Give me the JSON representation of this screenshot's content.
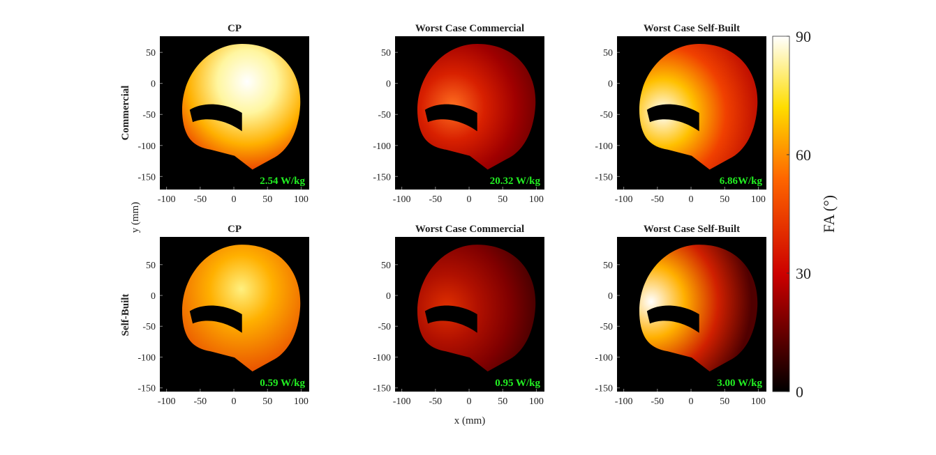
{
  "chart_data": [
    {
      "type": "heatmap",
      "title": "CP",
      "annotation": "2.54 W/kg",
      "xlim": [
        -110,
        112
      ],
      "ylim": [
        -171,
        76
      ],
      "xticks": [
        -100,
        -50,
        0,
        50,
        100
      ],
      "yticks": [
        -150,
        -100,
        -50,
        0,
        50
      ]
    },
    {
      "type": "heatmap",
      "title": "Worst Case Commercial",
      "annotation": "20.32 W/kg",
      "xlim": [
        -110,
        112
      ],
      "ylim": [
        -171,
        76
      ],
      "xticks": [
        -100,
        -50,
        0,
        50,
        100
      ],
      "yticks": [
        -150,
        -100,
        -50,
        0,
        50
      ]
    },
    {
      "type": "heatmap",
      "title": "Worst Case Self-Built",
      "annotation": "6.86W/kg",
      "xlim": [
        -110,
        112
      ],
      "ylim": [
        -171,
        76
      ],
      "xticks": [
        -100,
        -50,
        0,
        50,
        100
      ],
      "yticks": [
        -150,
        -100,
        -50,
        0,
        50
      ]
    },
    {
      "type": "heatmap",
      "title": "CP",
      "annotation": "0.59 W/kg",
      "xlim": [
        -110,
        112
      ],
      "ylim": [
        -156,
        95
      ],
      "xticks": [
        -100,
        -50,
        0,
        50,
        100
      ],
      "yticks": [
        -150,
        -100,
        -50,
        0,
        50
      ]
    },
    {
      "type": "heatmap",
      "title": "Worst Case Commercial",
      "annotation": "0.95 W/kg",
      "xlim": [
        -110,
        112
      ],
      "ylim": [
        -156,
        95
      ],
      "xticks": [
        -100,
        -50,
        0,
        50,
        100
      ],
      "yticks": [
        -150,
        -100,
        -50,
        0,
        50
      ]
    },
    {
      "type": "heatmap",
      "title": "Worst Case Self-Built",
      "annotation": "3.00 W/kg",
      "xlim": [
        -110,
        112
      ],
      "ylim": [
        -156,
        95
      ],
      "xticks": [
        -100,
        -50,
        0,
        50,
        100
      ],
      "yticks": [
        -150,
        -100,
        -50,
        0,
        50
      ]
    }
  ],
  "figure": {
    "row_labels": [
      "Commercial",
      "Self-Built"
    ],
    "xlabel": "x (mm)",
    "ylabel": "y (mm)",
    "colorbar": {
      "label": "FA (°)",
      "lim": [
        0,
        90
      ],
      "ticks": [
        0,
        30,
        60,
        90
      ]
    }
  }
}
